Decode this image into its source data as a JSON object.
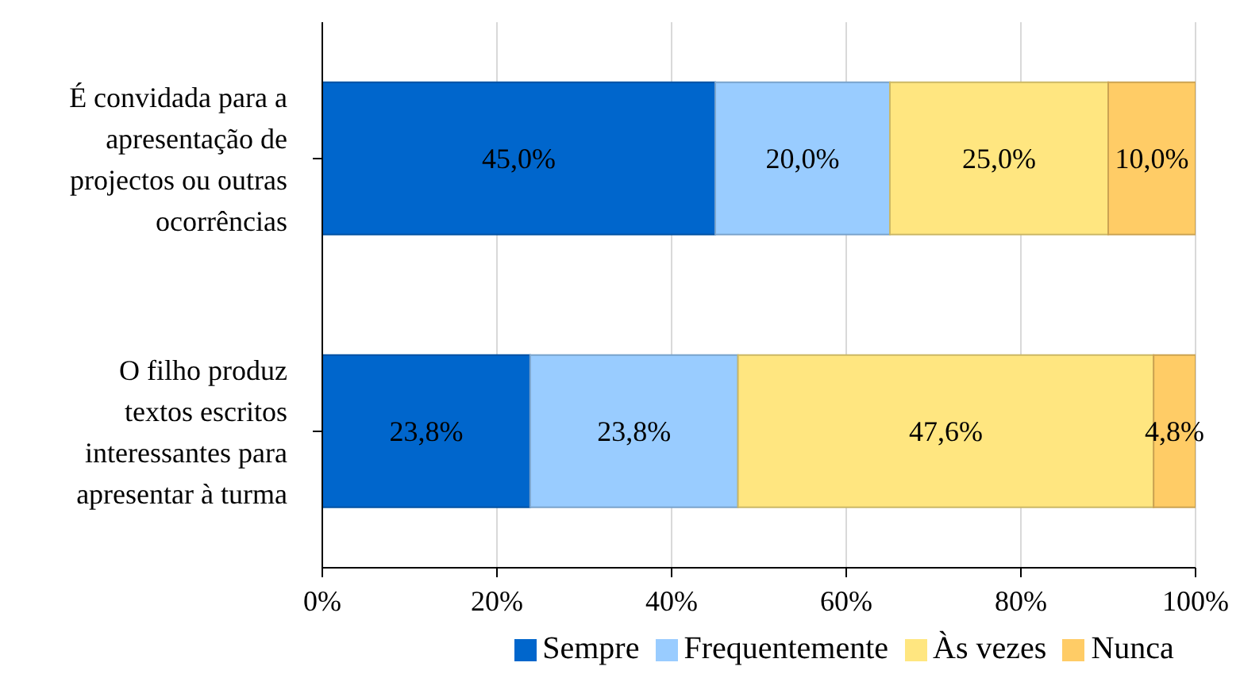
{
  "chart_data": {
    "type": "bar",
    "orientation": "horizontal",
    "stacked": true,
    "categories": [
      "É convidada para a apresentação de projectos ou outras ocorrências",
      "O filho produz textos escritos interessantes para apresentar à turma"
    ],
    "series": [
      {
        "name": "Sempre",
        "color": "#0066cc",
        "values": [
          45.0,
          23.8
        ],
        "value_labels": [
          "45,0%",
          "23,8%"
        ]
      },
      {
        "name": "Frequentemente",
        "color": "#99ccff",
        "values": [
          20.0,
          23.8
        ],
        "value_labels": [
          "20,0%",
          "23,8%"
        ]
      },
      {
        "name": "Às vezes",
        "color": "#ffe680",
        "values": [
          25.0,
          47.6
        ],
        "value_labels": [
          "25,0%",
          "47,6%"
        ]
      },
      {
        "name": "Nunca",
        "color": "#ffcc66",
        "values": [
          10.0,
          4.8
        ],
        "value_labels": [
          "10,0%",
          "4,8%"
        ]
      }
    ],
    "xlim": [
      0,
      100
    ],
    "xticks": [
      {
        "value": 0,
        "label": "0%"
      },
      {
        "value": 20,
        "label": "20%"
      },
      {
        "value": 40,
        "label": "40%"
      },
      {
        "value": 60,
        "label": "60%"
      },
      {
        "value": 80,
        "label": "80%"
      },
      {
        "value": 100,
        "label": "100%"
      }
    ],
    "grid": "x",
    "legend": "bottom"
  }
}
